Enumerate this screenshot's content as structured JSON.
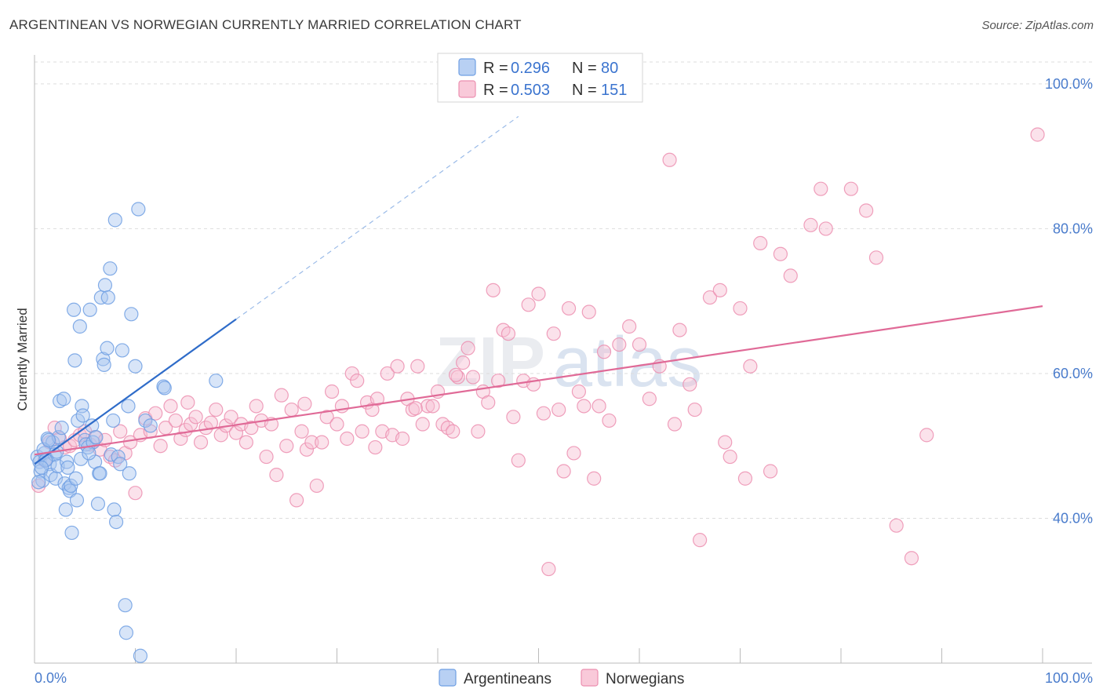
{
  "header": {
    "title": "ARGENTINEAN VS NORWEGIAN CURRENTLY MARRIED CORRELATION CHART",
    "source": "Source: ZipAtlas.com"
  },
  "watermark": {
    "zip": "ZIP",
    "atlas": "atlas"
  },
  "chart_data": {
    "type": "scatter",
    "title": "ARGENTINEAN VS NORWEGIAN CURRENTLY MARRIED CORRELATION CHART",
    "xlabel": "",
    "ylabel": "Currently Married",
    "xlim": [
      0,
      100
    ],
    "ylim": [
      20,
      104
    ],
    "x_tick_labels": [
      "0.0%",
      "100.0%"
    ],
    "y_ticks": [
      {
        "value": 40,
        "label": "40.0%"
      },
      {
        "value": 60,
        "label": "60.0%"
      },
      {
        "value": 80,
        "label": "80.0%"
      },
      {
        "value": 100,
        "label": "100.0%"
      }
    ],
    "legend": {
      "rows": [
        {
          "r_label": "R =",
          "r_value": "0.296",
          "n_label": "N =",
          "n_value": "80"
        },
        {
          "r_label": "R =",
          "r_value": "0.503",
          "n_label": "N =",
          "n_value": "151"
        }
      ]
    },
    "series": [
      {
        "name": "Argentineans",
        "color": "#6f9fe3",
        "fill": "#a9c6ef",
        "line_color": "#2f6cc9",
        "trend": {
          "x0": 0,
          "y0": 47.5,
          "x1": 20,
          "y1": 67.5,
          "dash_x1": 48,
          "dash_y1": 95.5
        },
        "points": [
          [
            0.3,
            48.5
          ],
          [
            0.5,
            47.8
          ],
          [
            0.6,
            46.5
          ],
          [
            0.8,
            45.2
          ],
          [
            1.0,
            49.0
          ],
          [
            1.2,
            48.2
          ],
          [
            1.3,
            51.0
          ],
          [
            1.5,
            47.5
          ],
          [
            1.6,
            46.0
          ],
          [
            1.8,
            50.5
          ],
          [
            2.0,
            48.8
          ],
          [
            2.1,
            45.5
          ],
          [
            2.3,
            47.2
          ],
          [
            2.4,
            51.2
          ],
          [
            2.5,
            56.2
          ],
          [
            2.7,
            52.5
          ],
          [
            2.9,
            56.5
          ],
          [
            3.0,
            44.8
          ],
          [
            3.1,
            41.2
          ],
          [
            3.2,
            47.8
          ],
          [
            3.4,
            44.2
          ],
          [
            3.5,
            43.8
          ],
          [
            3.6,
            44.5
          ],
          [
            3.7,
            38.0
          ],
          [
            3.9,
            68.8
          ],
          [
            4.0,
            61.8
          ],
          [
            4.1,
            45.5
          ],
          [
            4.2,
            42.5
          ],
          [
            4.3,
            53.5
          ],
          [
            4.5,
            66.5
          ],
          [
            4.6,
            48.2
          ],
          [
            4.7,
            55.5
          ],
          [
            4.8,
            54.2
          ],
          [
            5.0,
            50.8
          ],
          [
            5.1,
            50.2
          ],
          [
            5.3,
            49.8
          ],
          [
            5.5,
            68.8
          ],
          [
            5.7,
            52.8
          ],
          [
            5.8,
            50.5
          ],
          [
            6.0,
            47.8
          ],
          [
            6.1,
            51.2
          ],
          [
            6.3,
            42.0
          ],
          [
            6.4,
            46.2
          ],
          [
            6.5,
            46.2
          ],
          [
            6.6,
            70.5
          ],
          [
            6.8,
            62.0
          ],
          [
            6.9,
            61.2
          ],
          [
            7.0,
            72.2
          ],
          [
            7.2,
            63.5
          ],
          [
            7.3,
            70.5
          ],
          [
            7.5,
            74.5
          ],
          [
            7.6,
            48.8
          ],
          [
            7.8,
            53.5
          ],
          [
            7.9,
            41.2
          ],
          [
            8.0,
            81.2
          ],
          [
            8.1,
            39.5
          ],
          [
            8.3,
            48.5
          ],
          [
            8.5,
            47.5
          ],
          [
            8.7,
            63.2
          ],
          [
            9.0,
            28.0
          ],
          [
            9.1,
            24.2
          ],
          [
            9.3,
            55.5
          ],
          [
            9.4,
            46.2
          ],
          [
            9.6,
            68.2
          ],
          [
            10.0,
            61.0
          ],
          [
            10.3,
            82.7
          ],
          [
            10.5,
            21.0
          ],
          [
            11.0,
            53.5
          ],
          [
            11.5,
            52.8
          ],
          [
            12.8,
            58.2
          ],
          [
            12.9,
            58.0
          ],
          [
            18.0,
            59.0
          ],
          [
            0.9,
            49.5
          ],
          [
            1.1,
            48.0
          ],
          [
            1.4,
            50.8
          ],
          [
            0.4,
            45.0
          ],
          [
            0.7,
            47.0
          ],
          [
            2.2,
            49.2
          ],
          [
            3.3,
            47.0
          ],
          [
            5.4,
            49.0
          ]
        ]
      },
      {
        "name": "Norwegians",
        "color": "#ec8fb0",
        "fill": "#f6bfd2",
        "line_color": "#e06a97",
        "trend": {
          "x0": 0,
          "y0": 48.8,
          "x1": 100,
          "y1": 69.3
        },
        "points": [
          [
            0.4,
            44.5
          ],
          [
            1.0,
            48.0
          ],
          [
            1.5,
            50.5
          ],
          [
            2.0,
            52.5
          ],
          [
            2.5,
            51.0
          ],
          [
            3.0,
            49.8
          ],
          [
            3.5,
            50.0
          ],
          [
            4.0,
            50.8
          ],
          [
            4.5,
            51.5
          ],
          [
            5.0,
            52.0
          ],
          [
            5.5,
            50.2
          ],
          [
            6.0,
            51.2
          ],
          [
            6.5,
            49.5
          ],
          [
            7.0,
            50.8
          ],
          [
            7.5,
            48.5
          ],
          [
            8.0,
            48.0
          ],
          [
            8.5,
            52.0
          ],
          [
            9.0,
            49.0
          ],
          [
            9.5,
            50.5
          ],
          [
            10.0,
            43.5
          ],
          [
            10.5,
            51.5
          ],
          [
            11.0,
            53.8
          ],
          [
            11.5,
            52.0
          ],
          [
            12.0,
            54.5
          ],
          [
            12.5,
            50.0
          ],
          [
            13.0,
            52.5
          ],
          [
            13.5,
            55.5
          ],
          [
            14.0,
            53.5
          ],
          [
            14.5,
            51.0
          ],
          [
            15.0,
            52.2
          ],
          [
            15.5,
            53.0
          ],
          [
            16.0,
            54.0
          ],
          [
            16.5,
            50.5
          ],
          [
            17.0,
            52.5
          ],
          [
            17.5,
            53.2
          ],
          [
            18.0,
            55.0
          ],
          [
            18.5,
            51.5
          ],
          [
            19.0,
            52.8
          ],
          [
            19.5,
            54.0
          ],
          [
            20.0,
            51.8
          ],
          [
            20.5,
            53.0
          ],
          [
            21.0,
            50.5
          ],
          [
            21.5,
            52.5
          ],
          [
            22.0,
            55.5
          ],
          [
            22.5,
            53.5
          ],
          [
            23.0,
            48.5
          ],
          [
            23.5,
            53.0
          ],
          [
            24.0,
            46.0
          ],
          [
            24.5,
            57.0
          ],
          [
            25.0,
            50.0
          ],
          [
            25.5,
            55.0
          ],
          [
            26.0,
            42.5
          ],
          [
            26.5,
            52.0
          ],
          [
            27.0,
            49.5
          ],
          [
            27.5,
            50.5
          ],
          [
            28.0,
            44.5
          ],
          [
            28.5,
            50.5
          ],
          [
            29.0,
            54.0
          ],
          [
            29.5,
            57.5
          ],
          [
            30.0,
            53.0
          ],
          [
            30.5,
            55.5
          ],
          [
            31.0,
            51.0
          ],
          [
            31.5,
            60.0
          ],
          [
            32.0,
            59.0
          ],
          [
            32.5,
            52.0
          ],
          [
            33.0,
            56.0
          ],
          [
            33.5,
            55.0
          ],
          [
            34.0,
            56.5
          ],
          [
            34.5,
            52.0
          ],
          [
            35.0,
            60.0
          ],
          [
            35.5,
            51.5
          ],
          [
            36.0,
            61.0
          ],
          [
            36.5,
            51.0
          ],
          [
            37.0,
            56.5
          ],
          [
            37.5,
            55.0
          ],
          [
            38.0,
            61.0
          ],
          [
            38.5,
            53.0
          ],
          [
            39.0,
            55.5
          ],
          [
            39.5,
            55.5
          ],
          [
            40.0,
            57.5
          ],
          [
            40.5,
            53.0
          ],
          [
            41.0,
            52.5
          ],
          [
            41.5,
            52.0
          ],
          [
            42.0,
            59.5
          ],
          [
            42.5,
            61.5
          ],
          [
            43.0,
            63.5
          ],
          [
            43.5,
            59.5
          ],
          [
            44.0,
            52.0
          ],
          [
            44.5,
            57.5
          ],
          [
            45.0,
            56.0
          ],
          [
            45.5,
            71.5
          ],
          [
            46.0,
            59.0
          ],
          [
            46.5,
            66.0
          ],
          [
            47.0,
            65.5
          ],
          [
            47.5,
            54.0
          ],
          [
            48.0,
            48.0
          ],
          [
            48.5,
            59.0
          ],
          [
            49.0,
            69.5
          ],
          [
            49.5,
            58.5
          ],
          [
            50.0,
            71.0
          ],
          [
            50.5,
            54.5
          ],
          [
            51.0,
            33.0
          ],
          [
            51.5,
            65.5
          ],
          [
            52.0,
            55.0
          ],
          [
            52.5,
            46.5
          ],
          [
            53.0,
            69.0
          ],
          [
            53.5,
            49.0
          ],
          [
            54.0,
            57.5
          ],
          [
            54.5,
            55.5
          ],
          [
            55.0,
            68.5
          ],
          [
            55.5,
            45.5
          ],
          [
            56.0,
            55.5
          ],
          [
            56.5,
            63.0
          ],
          [
            57.0,
            53.5
          ],
          [
            58.0,
            64.0
          ],
          [
            59.0,
            66.5
          ],
          [
            60.0,
            64.0
          ],
          [
            61.0,
            56.5
          ],
          [
            62.0,
            61.0
          ],
          [
            63.0,
            89.5
          ],
          [
            63.5,
            53.0
          ],
          [
            64.0,
            66.0
          ],
          [
            65.0,
            58.5
          ],
          [
            65.5,
            55.0
          ],
          [
            66.0,
            37.0
          ],
          [
            67.0,
            70.5
          ],
          [
            68.0,
            71.5
          ],
          [
            68.5,
            50.5
          ],
          [
            69.0,
            48.5
          ],
          [
            70.0,
            69.0
          ],
          [
            70.5,
            45.5
          ],
          [
            71.0,
            61.0
          ],
          [
            72.0,
            78.0
          ],
          [
            73.0,
            46.5
          ],
          [
            74.0,
            76.5
          ],
          [
            75.0,
            73.5
          ],
          [
            77.0,
            80.5
          ],
          [
            78.0,
            85.5
          ],
          [
            78.5,
            80.0
          ],
          [
            81.0,
            85.5
          ],
          [
            82.5,
            82.5
          ],
          [
            83.5,
            76.0
          ],
          [
            85.5,
            39.0
          ],
          [
            87.0,
            34.5
          ],
          [
            88.5,
            51.5
          ],
          [
            99.5,
            93.0
          ],
          [
            15.2,
            56.0
          ],
          [
            26.8,
            55.8
          ],
          [
            33.8,
            49.8
          ],
          [
            37.8,
            55.2
          ],
          [
            41.8,
            59.8
          ]
        ]
      }
    ]
  }
}
